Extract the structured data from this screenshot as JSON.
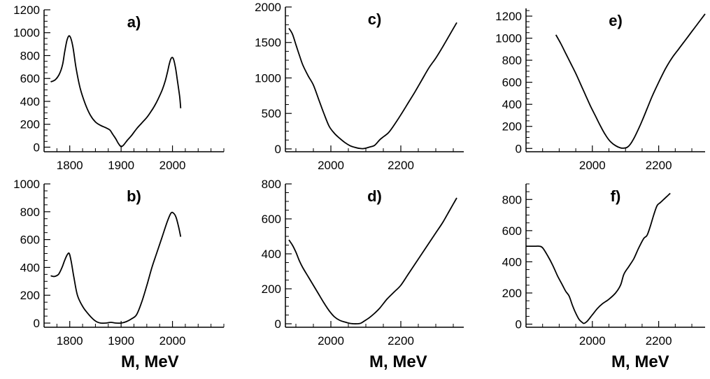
{
  "chart_data": [
    {
      "type": "line",
      "label": "a)",
      "xlabel": "",
      "xlim": [
        1750,
        2100
      ],
      "ylim": [
        -40,
        1200
      ],
      "xticks": [
        1800,
        1900,
        2000
      ],
      "yticks": [
        0,
        200,
        400,
        600,
        800,
        1000,
        1200
      ],
      "series": [
        {
          "x": [
            1763,
            1772,
            1780,
            1786,
            1790,
            1795,
            1800,
            1806,
            1812,
            1820,
            1830,
            1840,
            1850,
            1860,
            1870,
            1878,
            1884,
            1890,
            1895,
            1900,
            1905,
            1912,
            1920,
            1930,
            1940,
            1950,
            1958,
            1965,
            1972,
            1980,
            1986,
            1990,
            1994,
            1998,
            2002,
            2006,
            2010,
            2014,
            2016
          ],
          "y": [
            570,
            590,
            640,
            720,
            830,
            940,
            970,
            880,
            700,
            520,
            380,
            280,
            220,
            190,
            170,
            150,
            110,
            70,
            30,
            5,
            20,
            60,
            100,
            160,
            210,
            260,
            310,
            360,
            420,
            500,
            580,
            650,
            730,
            780,
            770,
            690,
            570,
            440,
            340
          ]
        }
      ]
    },
    {
      "type": "line",
      "label": "b)",
      "xlabel": "M, MeV",
      "xlim": [
        1750,
        2100
      ],
      "ylim": [
        -30,
        1000
      ],
      "xticks": [
        1800,
        1900,
        2000
      ],
      "yticks": [
        0,
        200,
        400,
        600,
        800,
        1000
      ],
      "series": [
        {
          "x": [
            1763,
            1770,
            1778,
            1785,
            1790,
            1795,
            1799,
            1803,
            1808,
            1815,
            1825,
            1835,
            1845,
            1852,
            1860,
            1870,
            1880,
            1890,
            1900,
            1910,
            1920,
            1930,
            1940,
            1950,
            1960,
            1970,
            1980,
            1990,
            1997,
            2002,
            2007,
            2012,
            2016
          ],
          "y": [
            340,
            335,
            350,
            400,
            450,
            490,
            500,
            440,
            330,
            200,
            120,
            70,
            30,
            10,
            0,
            0,
            5,
            0,
            0,
            10,
            30,
            60,
            150,
            270,
            400,
            510,
            620,
            730,
            790,
            790,
            760,
            690,
            620
          ]
        }
      ]
    },
    {
      "type": "line",
      "label": "c)",
      "xlabel": "",
      "xlim": [
        1870,
        2380
      ],
      "ylim": [
        -40,
        2000
      ],
      "xticks": [
        2000,
        2200
      ],
      "yticks": [
        0,
        500,
        1000,
        1500,
        2000
      ],
      "series": [
        {
          "x": [
            1880,
            1890,
            1900,
            1910,
            1920,
            1935,
            1950,
            1965,
            1980,
            1995,
            2010,
            2025,
            2040,
            2055,
            2070,
            2085,
            2095,
            2110,
            2125,
            2140,
            2150,
            2165,
            2180,
            2200,
            2220,
            2240,
            2260,
            2280,
            2300,
            2320,
            2340,
            2360
          ],
          "y": [
            1700,
            1620,
            1470,
            1320,
            1180,
            1030,
            900,
            700,
            500,
            320,
            220,
            150,
            90,
            45,
            20,
            5,
            5,
            25,
            50,
            130,
            170,
            230,
            330,
            480,
            640,
            800,
            970,
            1140,
            1280,
            1440,
            1610,
            1780
          ]
        }
      ]
    },
    {
      "type": "line",
      "label": "d)",
      "xlabel": "M, MeV",
      "xlim": [
        1870,
        2380
      ],
      "ylim": [
        -20,
        800
      ],
      "xticks": [
        2000,
        2200
      ],
      "yticks": [
        0,
        200,
        400,
        600,
        800
      ],
      "series": [
        {
          "x": [
            1880,
            1890,
            1900,
            1910,
            1920,
            1935,
            1950,
            1965,
            1980,
            1995,
            2010,
            2025,
            2040,
            2055,
            2065,
            2075,
            2085,
            2095,
            2110,
            2125,
            2140,
            2160,
            2180,
            2200,
            2220,
            2240,
            2260,
            2280,
            2300,
            2320,
            2340,
            2360
          ],
          "y": [
            480,
            450,
            410,
            360,
            320,
            270,
            220,
            170,
            120,
            75,
            40,
            20,
            10,
            2,
            0,
            0,
            3,
            15,
            35,
            60,
            90,
            140,
            180,
            220,
            280,
            340,
            400,
            460,
            520,
            580,
            650,
            720
          ]
        }
      ]
    },
    {
      "type": "line",
      "label": "e)",
      "xlabel": "",
      "xlim": [
        1800,
        2340
      ],
      "ylim": [
        -30,
        1270
      ],
      "xticks": [
        2000,
        2200
      ],
      "yticks": [
        0,
        200,
        400,
        600,
        800,
        1000,
        1200
      ],
      "series": [
        {
          "x": [
            1890,
            1905,
            1920,
            1935,
            1950,
            1965,
            1980,
            1995,
            2010,
            2025,
            2040,
            2055,
            2070,
            2085,
            2095,
            2105,
            2115,
            2125,
            2135,
            2150,
            2165,
            2180,
            2200,
            2220,
            2240,
            2260,
            2280,
            2300,
            2320,
            2340
          ],
          "y": [
            1030,
            950,
            860,
            770,
            680,
            580,
            480,
            380,
            290,
            200,
            120,
            60,
            25,
            5,
            3,
            10,
            40,
            90,
            150,
            250,
            360,
            470,
            600,
            720,
            820,
            900,
            980,
            1060,
            1140,
            1220
          ]
        }
      ]
    },
    {
      "type": "line",
      "label": "f)",
      "xlabel": "M, MeV",
      "xlim": [
        1800,
        2340
      ],
      "ylim": [
        -20,
        900
      ],
      "xticks": [
        2000,
        2200
      ],
      "yticks": [
        0,
        200,
        400,
        600,
        800
      ],
      "series": [
        {
          "x": [
            1800,
            1815,
            1830,
            1840,
            1850,
            1865,
            1880,
            1895,
            1910,
            1920,
            1930,
            1940,
            1950,
            1960,
            1970,
            1975,
            1985,
            2000,
            2015,
            2030,
            2050,
            2070,
            2085,
            2095,
            2110,
            2125,
            2140,
            2155,
            2165,
            2175,
            2185,
            2195,
            2205,
            2215,
            2225,
            2235
          ],
          "y": [
            500,
            500,
            500,
            500,
            490,
            440,
            380,
            310,
            250,
            210,
            180,
            120,
            70,
            30,
            10,
            5,
            20,
            60,
            100,
            130,
            160,
            200,
            250,
            320,
            370,
            420,
            490,
            550,
            570,
            630,
            700,
            760,
            780,
            800,
            820,
            840
          ]
        }
      ]
    }
  ]
}
